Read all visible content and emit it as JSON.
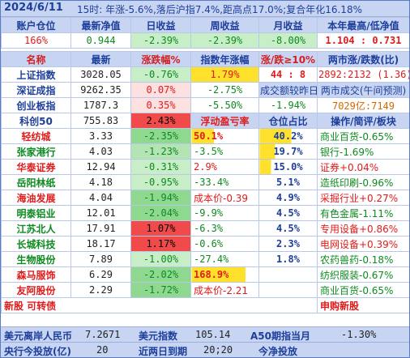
{
  "title_bar": {
    "date": "2024/6/11",
    "info": "15时: 年涨-5.6%,落后沪指7.4%,距高点17.0%;复合年化16.18%"
  },
  "account_header": [
    "账户仓位",
    "最新净值",
    "日收益",
    "周收益",
    "月收益",
    "本年最高/低净值"
  ],
  "account_values": {
    "position": "166%",
    "nav": "0.944",
    "day": "-2.39%",
    "week": "-2.39%",
    "month": "-8.00%",
    "high_low": "1.104 : 0.731"
  },
  "index_header": {
    "name": "名称",
    "latest": "最新",
    "change": "涨跌幅%",
    "annual": "指数年涨幅",
    "updown": "涨/跌≥10%",
    "market_updown": "两市涨/跌数(比)"
  },
  "indices": [
    {
      "name": "上证指数",
      "latest": "3028.05",
      "change": "-0.76%",
      "annual": "1.79%",
      "c5": "44 : 8",
      "c6": "2892:2132 (1.36)"
    },
    {
      "name": "深证成指",
      "latest": "9262.35",
      "change": "0.07%",
      "annual": "-2.75%",
      "c5": "成交额较昨日",
      "c6": "两市成交(午间预测)"
    },
    {
      "name": "创业板指",
      "latest": "1787.3",
      "change": "0.35%",
      "annual": "-5.50%",
      "c5": "-1.94%",
      "c6": "7029亿:7149"
    },
    {
      "name": "科创50",
      "latest": "755.83",
      "change": "2.43%",
      "annual": "浮动盈亏率",
      "c5": "仓位占比",
      "c6": "操作/简评/板块"
    }
  ],
  "stocks": [
    {
      "name": "轻纺城",
      "price": "3.33",
      "change": "-2.35%",
      "pnl": "50.1%",
      "share": "40.2%",
      "note": "商业百货-0.65%"
    },
    {
      "name": "张家港行",
      "price": "4.03",
      "change": "-1.23%",
      "pnl": "-3.5%",
      "share": "19.7%",
      "note": "银行-1.69%"
    },
    {
      "name": "华泰证券",
      "price": "12.94",
      "change": "-0.31%",
      "pnl": "2.9%",
      "share": "15.0%",
      "note": "证券+0.04%"
    },
    {
      "name": "岳阳林纸",
      "price": "4.18",
      "change": "-0.95%",
      "pnl": "-33.4%",
      "share": "5.1%",
      "note": "造纸印刷-0.96%"
    },
    {
      "name": "海油发展",
      "price": "4.04",
      "change": "-1.94%",
      "pnl": "成本价-0.39",
      "share": "4.9%",
      "note": "采掘行业+0.27%"
    },
    {
      "name": "明泰铝业",
      "price": "12.01",
      "change": "-2.04%",
      "pnl": "-9.9%",
      "share": "4.5%",
      "note": "有色金属-1.11%"
    },
    {
      "name": "江苏北人",
      "price": "17.91",
      "change": "1.07%",
      "pnl": "-6.3%",
      "share": "4.5%",
      "note": "专用设备+0.86%"
    },
    {
      "name": "长城科技",
      "price": "18.17",
      "change": "1.17%",
      "pnl": "-0.6%",
      "share": "2.3%",
      "note": "电网设备+0.39%"
    },
    {
      "name": "生物股份",
      "price": "7.89",
      "change": "-1.00%",
      "pnl": "-27.4%",
      "share": "1.8%",
      "note": "农药兽药-0.18%"
    },
    {
      "name": "森马服饰",
      "price": "6.29",
      "change": "-2.02%",
      "pnl": "168.9%",
      "share": "",
      "note": "纺织服装-0.67%"
    },
    {
      "name": "友阿股份",
      "price": "2.29",
      "change": "-1.72%",
      "pnl": "成本价-2.21",
      "share": "",
      "note": "商业百货-0.65%"
    }
  ],
  "new_shares": {
    "label": "新股 可转债",
    "action": "申购新股"
  },
  "footer1": {
    "usd_label": "美元离岸人民币",
    "usd_value": "7.2671",
    "dxy_label": "美元指数",
    "dxy_value": "105.14",
    "a50_label": "A50期指当月",
    "a50_value": "-1.30%"
  },
  "footer2": {
    "omo_label": "央行今投放(亿)",
    "omo_value": "20",
    "due_label": "近两日到期",
    "due_value": "20;20",
    "today_label": "今净投放",
    "today_value": ""
  }
}
